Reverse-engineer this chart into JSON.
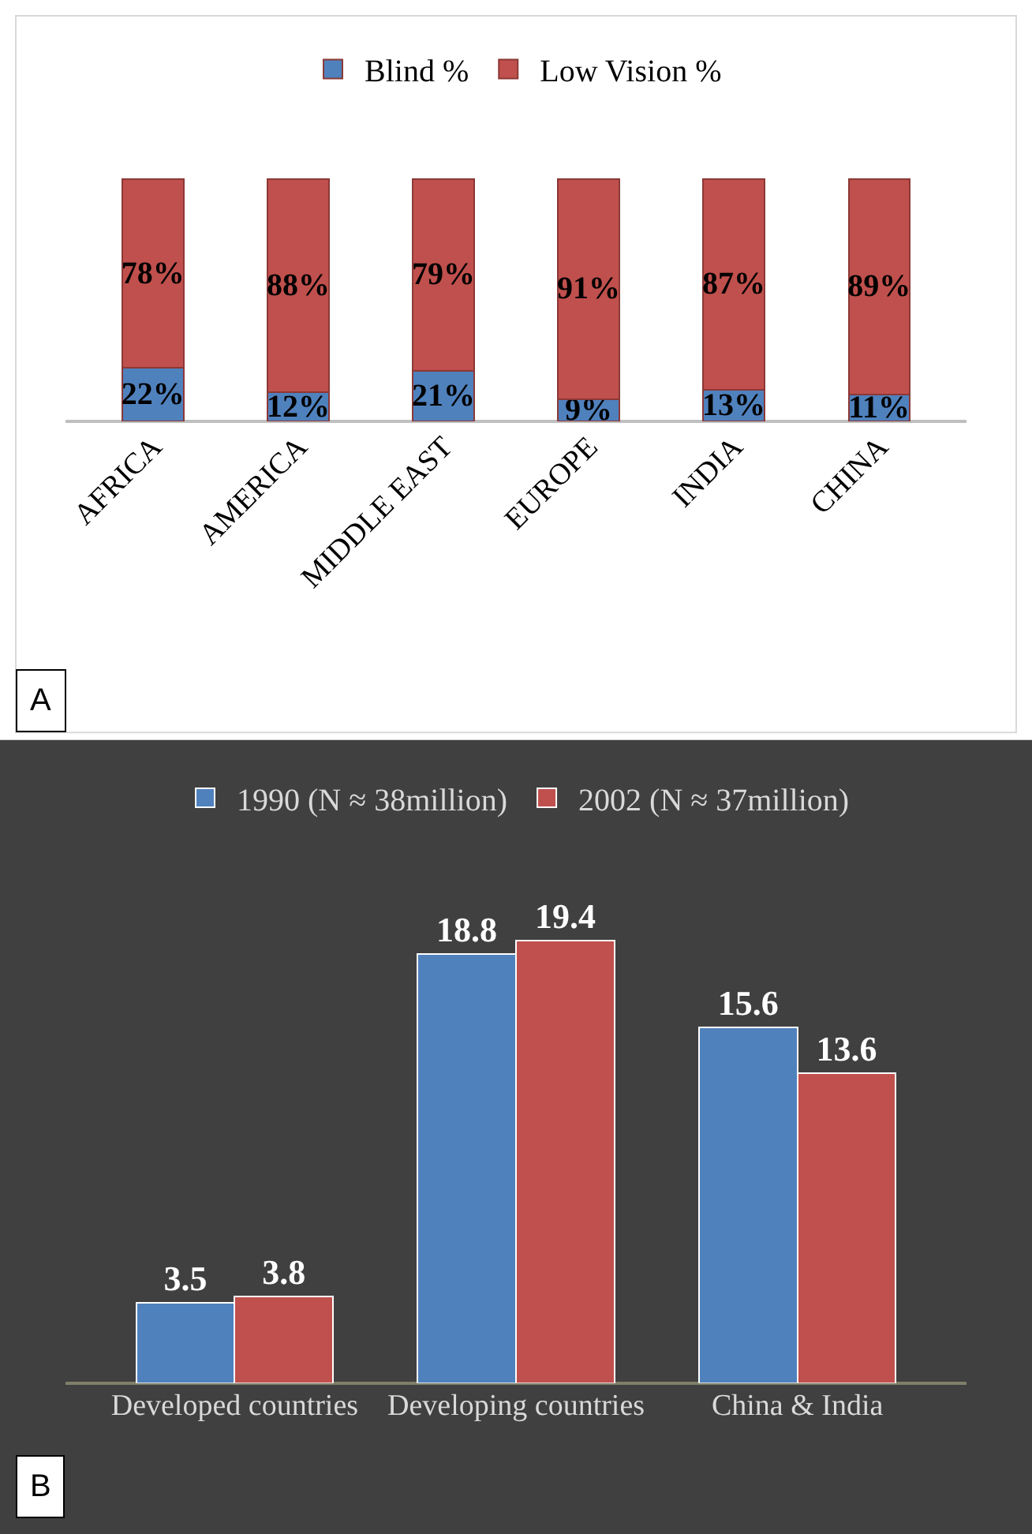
{
  "chart_data": [
    {
      "type": "bar",
      "stacked": true,
      "legend": "top",
      "categories": [
        "AFRICA",
        "AMERICA",
        "MIDDLE EAST",
        "EUROPE",
        "INDIA",
        "CHINA"
      ],
      "series": [
        {
          "name": "Blind %",
          "color": "#4f81bd",
          "values": [
            22,
            12,
            21,
            9,
            13,
            11
          ],
          "value_labels": [
            "22%",
            "12%",
            "21%",
            "9%",
            "13%",
            "11%"
          ]
        },
        {
          "name": "Low Vision %",
          "color": "#c0504d",
          "values": [
            78,
            88,
            79,
            91,
            87,
            89
          ],
          "value_labels": [
            "78%",
            "88%",
            "79%",
            "91%",
            "87%",
            "89%"
          ]
        }
      ],
      "annotations": [
        "A"
      ]
    },
    {
      "type": "bar",
      "data_labels": true,
      "legend": "top",
      "categories": [
        "Developed countries",
        "Developing countries",
        "China & India"
      ],
      "series": [
        {
          "name": "1990 (N ≈ 38million)",
          "color": "#4f81bd",
          "values": [
            3.5,
            18.8,
            15.6
          ]
        },
        {
          "name": "2002 (N ≈ 37million)",
          "color": "#c0504d",
          "values": [
            3.8,
            19.4,
            13.6
          ]
        }
      ],
      "annotations": [
        "B"
      ]
    }
  ]
}
